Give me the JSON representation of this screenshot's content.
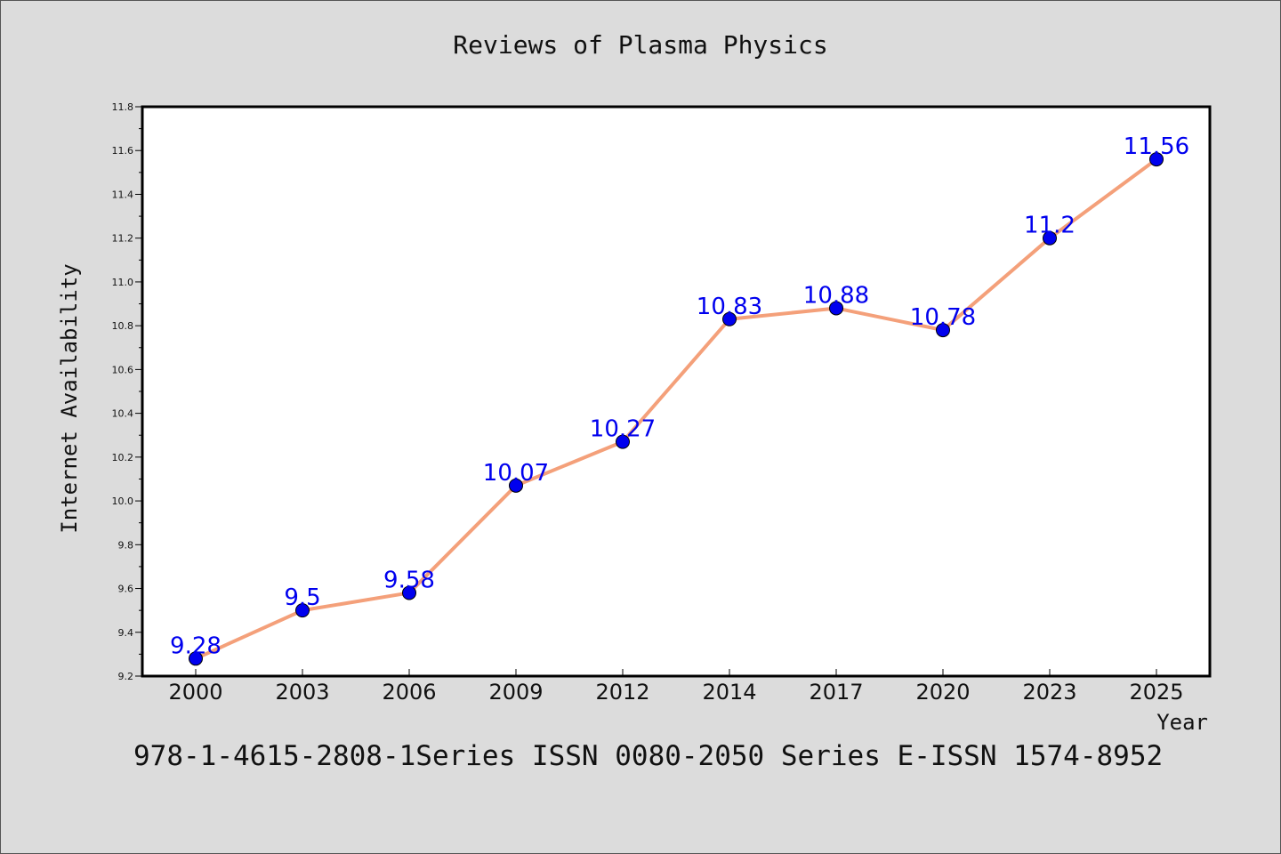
{
  "title": "Reviews of Plasma Physics",
  "footer": "978-1-4615-2808-1Series ISSN 0080-2050 Series E-ISSN 1574-8952",
  "chart_data": {
    "type": "line",
    "title": "Reviews of Plasma Physics",
    "xlabel": "Year",
    "ylabel": "Internet Availability",
    "categories": [
      "2000",
      "2003",
      "2006",
      "2009",
      "2012",
      "2014",
      "2017",
      "2020",
      "2023",
      "2025"
    ],
    "values": [
      9.28,
      9.5,
      9.58,
      10.07,
      10.27,
      10.83,
      10.88,
      10.78,
      11.2,
      11.56
    ],
    "value_labels": [
      "9.28",
      "9.5",
      "9.58",
      "10.07",
      "10.27",
      "10.83",
      "10.88",
      "10.78",
      "11.2",
      "11.56"
    ],
    "ylim": [
      9.2,
      11.8
    ],
    "yticks": [
      "9.2",
      "9.4",
      "9.6",
      "9.8",
      "10.0",
      "10.2",
      "10.4",
      "10.6",
      "10.8",
      "11.0",
      "11.2",
      "11.4",
      "11.6",
      "11.8"
    ],
    "grid": false,
    "legend": "none",
    "line_color": "#f4a07a",
    "marker_color": "#0000ee",
    "label_color": "#0000ee"
  }
}
